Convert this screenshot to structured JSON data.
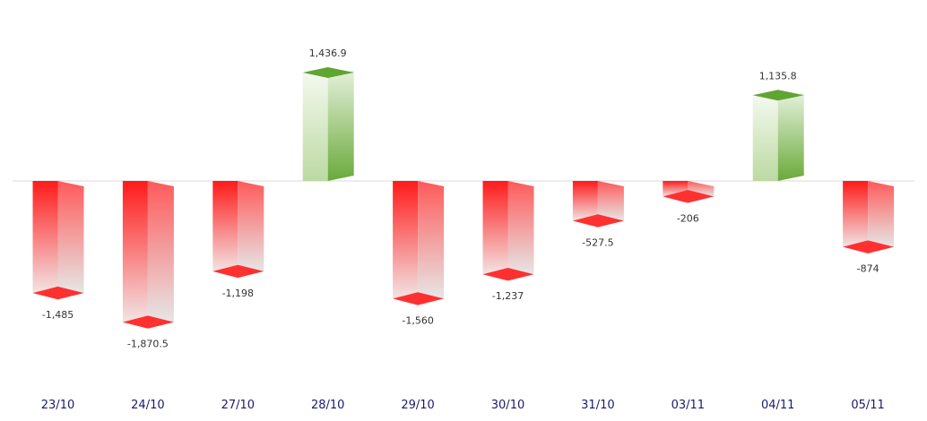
{
  "chart_data": {
    "type": "bar",
    "categories": [
      "23/10",
      "24/10",
      "27/10",
      "28/10",
      "29/10",
      "30/10",
      "31/10",
      "03/11",
      "04/11",
      "05/11"
    ],
    "values": [
      -1485,
      -1870.5,
      -1198,
      1436.9,
      -1560,
      -1237,
      -527.5,
      -206,
      1135.8,
      -874
    ],
    "data_labels": [
      "-1,485",
      "-1,870.5",
      "-1,198",
      "1,436.9",
      "-1,560",
      "-1,237",
      "-527.5",
      "-206",
      "1,135.8",
      "-874"
    ],
    "title": "",
    "xlabel": "",
    "ylabel": "",
    "ylim": [
      -2800,
      2200
    ],
    "grid": false,
    "legend": "none",
    "style": "3d-columns",
    "colors": {
      "positive": "#6aaa3a",
      "positive_top": "#5ea532",
      "negative": "#ff1a1a",
      "negative_bottom": "#ff3030",
      "fade": "#e6e6e6",
      "zero_line": "#d8d8d8",
      "tick_text": "#1a1a6e",
      "value_text": "#333333"
    }
  }
}
